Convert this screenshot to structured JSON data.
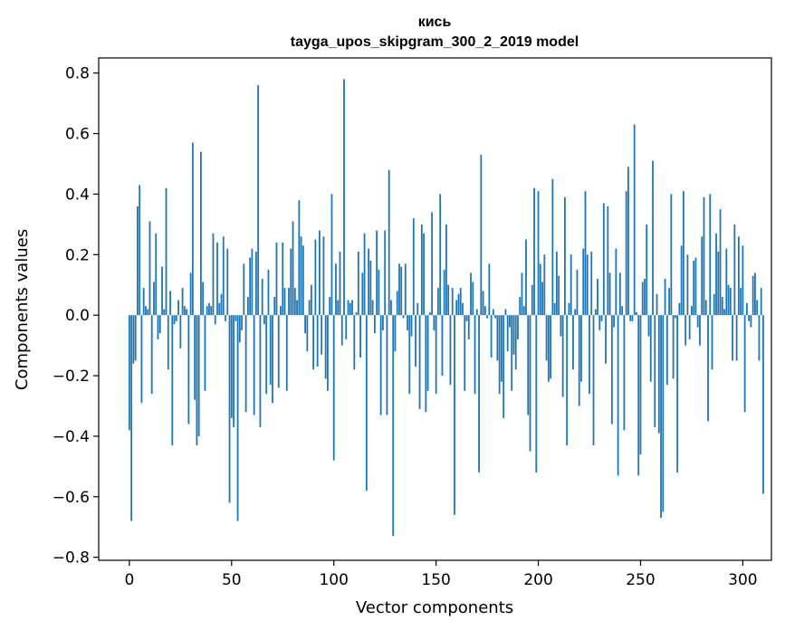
{
  "chart_data": {
    "type": "bar",
    "title": "кись",
    "subtitle": "tayga_upos_skipgram_300_2_2019 model",
    "xlabel": "Vector components",
    "ylabel": "Components values",
    "xlim": [
      -15,
      314
    ],
    "ylim": [
      -0.81,
      0.85
    ],
    "xticks": [
      0,
      50,
      100,
      150,
      200,
      250,
      300
    ],
    "yticks": [
      -0.8,
      -0.6,
      -0.4,
      -0.2,
      0.0,
      0.2,
      0.4,
      0.6,
      0.8
    ],
    "ytick_labels": [
      "−0.8",
      "−0.6",
      "−0.4",
      "−0.2",
      "0.0",
      "0.2",
      "0.4",
      "0.6",
      "0.8"
    ],
    "xtick_labels": [
      "0",
      "50",
      "100",
      "150",
      "200",
      "250",
      "300"
    ],
    "bar_color": "#1f77b4",
    "grid": false,
    "values": [
      -0.38,
      -0.68,
      -0.16,
      -0.15,
      0.36,
      0.43,
      -0.29,
      0.09,
      0.03,
      0.02,
      0.31,
      -0.26,
      0.11,
      0.27,
      -0.08,
      -0.06,
      0.16,
      0.02,
      0.42,
      -0.18,
      0.08,
      -0.43,
      -0.03,
      -0.02,
      0.05,
      -0.11,
      0.09,
      0.03,
      0.02,
      -0.36,
      0.14,
      0.57,
      -0.28,
      -0.43,
      -0.4,
      0.54,
      0.11,
      -0.25,
      0.03,
      0.04,
      0.03,
      0.27,
      -0.03,
      0.24,
      0.04,
      0.07,
      0.26,
      -0.02,
      0.22,
      -0.62,
      -0.34,
      -0.37,
      -0.02,
      -0.68,
      -0.09,
      -0.05,
      0.17,
      -0.32,
      0.06,
      0.19,
      0.22,
      -0.33,
      0.21,
      0.76,
      -0.37,
      0.12,
      -0.03,
      -0.26,
      0.15,
      -0.23,
      -0.29,
      0.06,
      0.24,
      -0.24,
      0.03,
      0.24,
      0.09,
      -0.25,
      0.09,
      0.22,
      0.31,
      0.09,
      0.05,
      0.38,
      0.26,
      0.23,
      -0.06,
      -0.12,
      0.05,
      0.1,
      -0.18,
      0.25,
      -0.17,
      0.28,
      -0.13,
      0.26,
      -0.21,
      -0.25,
      0.06,
      0.4,
      -0.48,
      0.17,
      0.05,
      0.21,
      -0.1,
      0.78,
      -0.08,
      0.05,
      0.04,
      0.05,
      -0.18,
      0.01,
      0.21,
      -0.14,
      0.14,
      0.27,
      -0.58,
      0.22,
      0.18,
      0.05,
      -0.06,
      0.28,
      0.15,
      -0.33,
      -0.05,
      0.28,
      -0.33,
      0.48,
      0.05,
      -0.73,
      -0.12,
      0.08,
      0.17,
      0.16,
      -0.01,
      0.17,
      -0.05,
      -0.26,
      -0.07,
      0.32,
      -0.17,
      0.04,
      -0.31,
      0.3,
      0.27,
      -0.32,
      -0.25,
      0.01,
      0.34,
      -0.05,
      -0.26,
      0.09,
      0.4,
      -0.2,
      0.15,
      0.3,
      0.1,
      -0.23,
      0.09,
      -0.66,
      0.05,
      0.07,
      0.09,
      0.04,
      -0.25,
      -0.02,
      -0.08,
      0.14,
      0.11,
      -0.26,
      0.02,
      -0.52,
      0.53,
      0.08,
      0.03,
      -0.01,
      0.17,
      -0.14,
      0.02,
      -0.01,
      -0.15,
      -0.26,
      -0.22,
      -0.34,
      0.02,
      -0.12,
      -0.04,
      -0.25,
      -0.13,
      -0.18,
      -0.08,
      0.06,
      0.14,
      0.03,
      0.25,
      -0.33,
      -0.45,
      0.1,
      0.42,
      -0.52,
      0.41,
      0.17,
      0.11,
      0.2,
      -0.15,
      -0.22,
      -0.21,
      0.45,
      0.04,
      0.21,
      0.13,
      -0.07,
      -0.27,
      0.39,
      -0.43,
      0.04,
      0.2,
      -0.18,
      0.02,
      0.15,
      -0.3,
      -0.22,
      0.22,
      0.41,
      0.2,
      -0.26,
      0.21,
      -0.43,
      0.02,
      0.12,
      -0.05,
      -0.02,
      0.37,
      -0.16,
      0.36,
      0.14,
      -0.36,
      -0.04,
      0.22,
      -0.53,
      0.14,
      0.03,
      -0.38,
      0.41,
      0.49,
      -0.02,
      -0.02,
      0.63,
      0.01,
      -0.53,
      -0.46,
      0.11,
      0.12,
      0.3,
      -0.07,
      -0.22,
      0.51,
      -0.37,
      0.07,
      -0.39,
      -0.67,
      -0.65,
      0.12,
      -0.23,
      0.09,
      0.4,
      -0.21,
      -0.01,
      -0.52,
      0.04,
      0.23,
      0.41,
      -0.1,
      0.2,
      -0.08,
      0.03,
      0.18,
      0.19,
      -0.04,
      -0.1,
      0.26,
      0.39,
      0.05,
      -0.35,
      0.4,
      -0.18,
      0.07,
      0.27,
      0.21,
      0.35,
      0.06,
      0.02,
      0.22,
      0.1,
      0.09,
      -0.15,
      0.3,
      -0.15,
      0.26,
      0.09,
      0.23,
      -0.32,
      0.04,
      -0.02,
      -0.04,
      0.13,
      0.14,
      0.05,
      -0.15,
      0.09,
      -0.59
    ]
  }
}
